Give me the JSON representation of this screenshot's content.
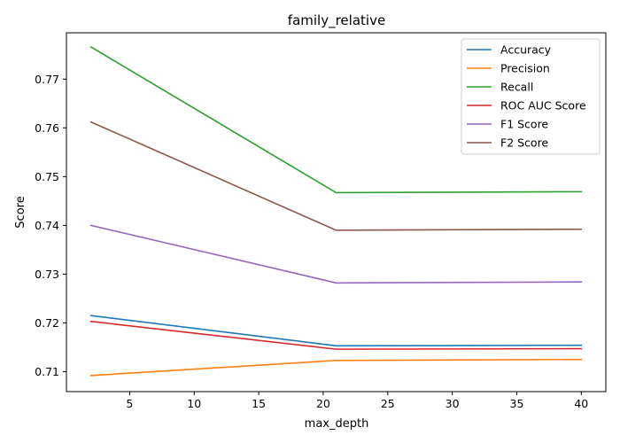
{
  "chart_data": {
    "type": "line",
    "title": "family_relative",
    "xlabel": "max_depth",
    "ylabel": "Score",
    "x": [
      2,
      21,
      40
    ],
    "xlim": [
      0.1,
      41.9
    ],
    "ylim": [
      0.7059,
      0.7795
    ],
    "xticks": [
      5,
      10,
      15,
      20,
      25,
      30,
      35,
      40
    ],
    "yticks": [
      0.71,
      0.72,
      0.73,
      0.74,
      0.75,
      0.76,
      0.77
    ],
    "ytick_labels": [
      "0.71",
      "0.72",
      "0.73",
      "0.74",
      "0.75",
      "0.76",
      "0.77"
    ],
    "grid": false,
    "legend_position": "top-right",
    "series": [
      {
        "name": "Accuracy",
        "color": "#1f77b4",
        "values": [
          0.7215,
          0.7153,
          0.7154
        ]
      },
      {
        "name": "Precision",
        "color": "#ff7f0e",
        "values": [
          0.7092,
          0.7123,
          0.7125
        ]
      },
      {
        "name": "Recall",
        "color": "#2ca02c",
        "values": [
          0.7766,
          0.7467,
          0.7469
        ]
      },
      {
        "name": "ROC AUC Score",
        "color": "#d62728",
        "values": [
          0.7203,
          0.7146,
          0.7147
        ]
      },
      {
        "name": "F1 Score",
        "color": "#9467bd",
        "values": [
          0.74,
          0.7282,
          0.7284
        ]
      },
      {
        "name": "F2 Score",
        "color": "#8c564b",
        "values": [
          0.7612,
          0.739,
          0.7392
        ]
      }
    ]
  }
}
